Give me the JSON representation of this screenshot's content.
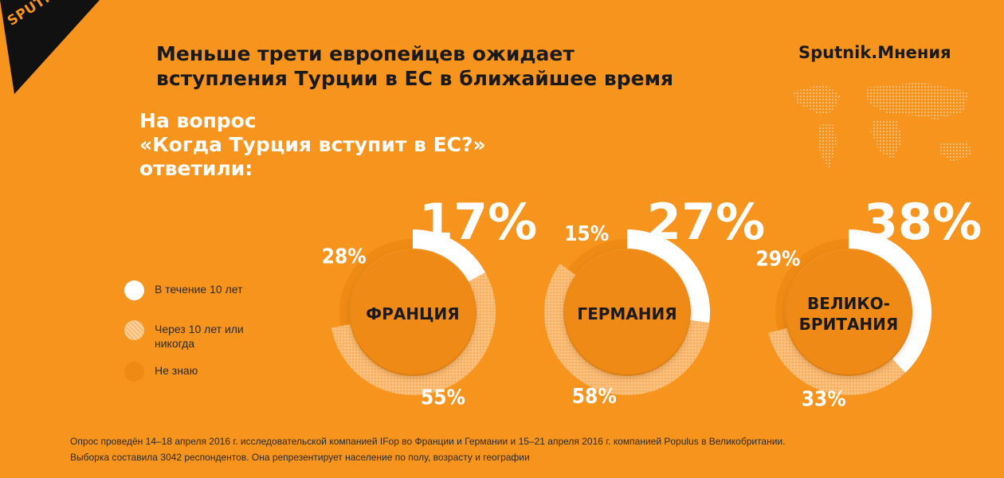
{
  "logo": {
    "text": "SPUTNIK"
  },
  "title": {
    "line1": "Меньше трети европейцев ожидает",
    "line2": "вступления Турции в ЕС в ближайшее время"
  },
  "brand": "Sputnik.Мнения",
  "question": "На вопрос\n«Когда Турция вступит в ЕС?»\nответили:",
  "legend": [
    {
      "label": "В течение 10 лет",
      "color": "#ffffff"
    },
    {
      "label": "Через 10 лет или никогда",
      "color": "#f9b970"
    },
    {
      "label": "Не знаю",
      "color": "#ef8a14"
    }
  ],
  "chart_data": {
    "type": "pie",
    "categories": [
      "В течение 10 лет",
      "Через 10 лет или никогда",
      "Не знаю"
    ],
    "series": [
      {
        "name": "ФРАНЦИЯ",
        "values": [
          17,
          55,
          28
        ]
      },
      {
        "name": "ГЕРМАНИЯ",
        "values": [
          27,
          58,
          15
        ]
      },
      {
        "name": "ВЕЛИКО-\nБРИТАНИЯ",
        "values": [
          38,
          33,
          29
        ]
      }
    ],
    "colors": [
      "#ffffff",
      "#f9b970",
      "#ef8a14"
    ]
  },
  "footnote": {
    "line1": "Опрос проведён 14–18 апреля 2016 г. исследовательской компанией IFop во Франции и Германии и 15–21 апреля 2016 г. компанией Populus в Великобритании.",
    "line2": "Выборка составила 3042 респондентов. Она репрезентирует население по полу, возрасту и географии"
  }
}
